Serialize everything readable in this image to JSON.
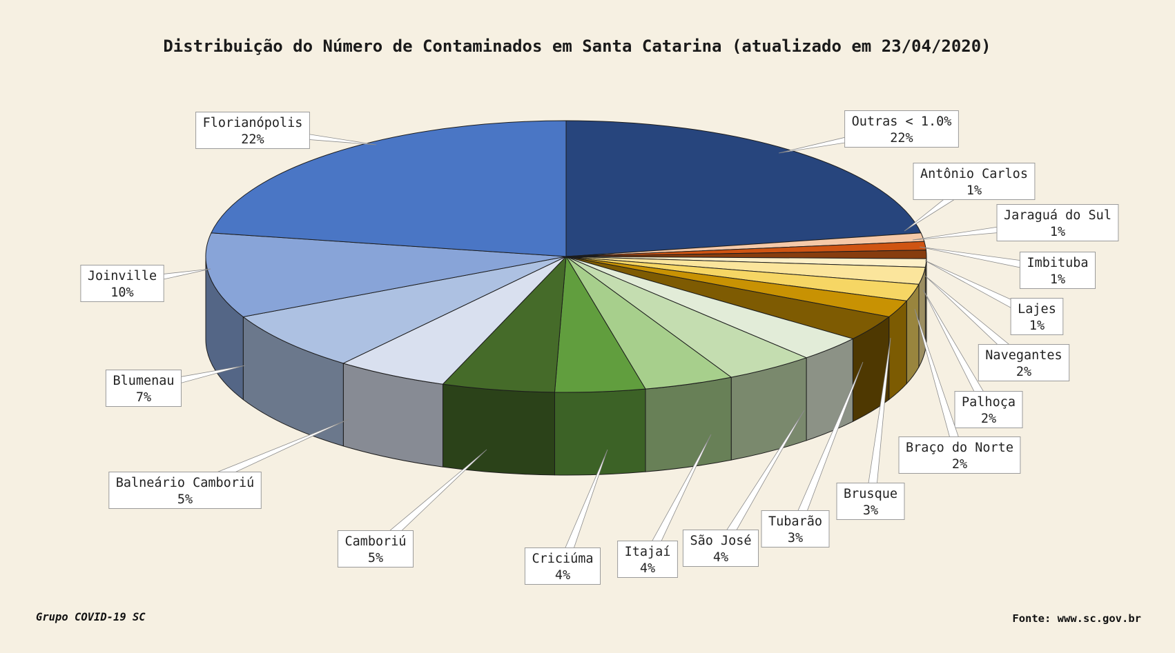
{
  "chart_data": {
    "type": "pie",
    "title": "Distribuição do Número de Contaminados em Santa Catarina (atualizado em 23/04/2020)",
    "slices": [
      {
        "label": "Outras < 1.0%",
        "pct": "22%",
        "value": 22,
        "color": "#27457d"
      },
      {
        "label": "Antônio Carlos",
        "pct": "1%",
        "value": 1,
        "color": "#f5c9a8"
      },
      {
        "label": "Jaraguá do Sul",
        "pct": "1%",
        "value": 1,
        "color": "#cf5412"
      },
      {
        "label": "Imbituba",
        "pct": "1%",
        "value": 1,
        "color": "#873d0e"
      },
      {
        "label": "Lajes",
        "pct": "1%",
        "value": 1,
        "color": "#fdf0c8"
      },
      {
        "label": "Navegantes",
        "pct": "2%",
        "value": 2,
        "color": "#fbe59c"
      },
      {
        "label": "Palhoça",
        "pct": "2%",
        "value": 2,
        "color": "#f6d664"
      },
      {
        "label": "Braço do Norte",
        "pct": "2%",
        "value": 2,
        "color": "#c89203"
      },
      {
        "label": "Brusque",
        "pct": "3%",
        "value": 3,
        "color": "#7e5b02"
      },
      {
        "label": "Tubarão",
        "pct": "3%",
        "value": 3,
        "color": "#e2ecd8"
      },
      {
        "label": "São José",
        "pct": "4%",
        "value": 4,
        "color": "#c4ddb0"
      },
      {
        "label": "Itajaí",
        "pct": "4%",
        "value": 4,
        "color": "#a7cf8c"
      },
      {
        "label": "Criciúma",
        "pct": "4%",
        "value": 4,
        "color": "#619e3e"
      },
      {
        "label": "Camboriú",
        "pct": "5%",
        "value": 5,
        "color": "#456b29"
      },
      {
        "label": "Balneário Camboriú",
        "pct": "5%",
        "value": 5,
        "color": "#d9e0ef"
      },
      {
        "label": "Blumenau",
        "pct": "7%",
        "value": 7,
        "color": "#adc1e2"
      },
      {
        "label": "Joinville",
        "pct": "10%",
        "value": 10,
        "color": "#88a4d8"
      },
      {
        "label": "Florianópolis",
        "pct": "22%",
        "value": 22,
        "color": "#4a76c5"
      }
    ]
  },
  "footer": {
    "left": "Grupo COVID-19 SC",
    "right": "Fonte: www.sc.gov.br"
  }
}
